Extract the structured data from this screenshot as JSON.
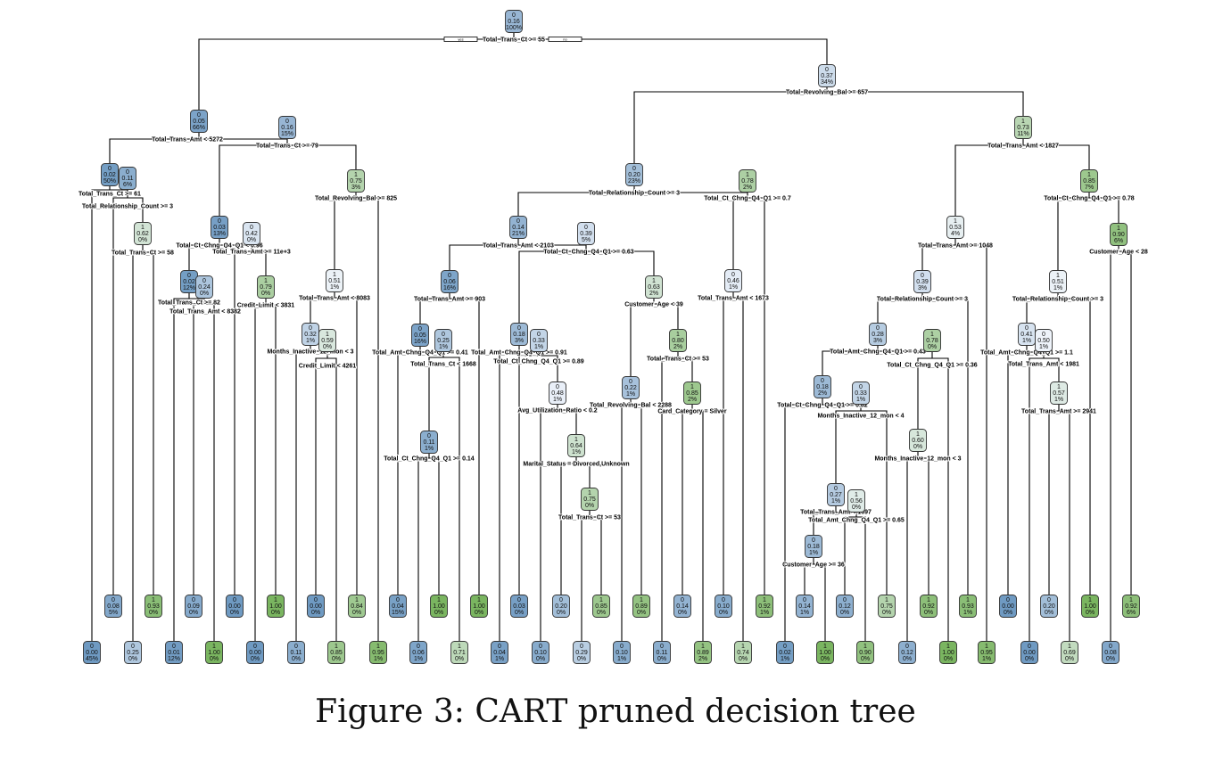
{
  "caption": "Figure 3: CART pruned decision tree",
  "palette": {
    "low": "#6f9ac2",
    "mid": "#eef3fa",
    "high": "#7ab560",
    "lowRange": [
      0,
      0.5
    ],
    "highRange": [
      0.5,
      1
    ]
  },
  "root_labels": {
    "yes": "yes",
    "no": "no"
  },
  "nodes": [
    {
      "id": 1,
      "cls": "0",
      "p": "0.16",
      "pct": "100%",
      "split": "Total_Trans_Ct >= 55"
    },
    {
      "id": 2,
      "cls": "0",
      "p": "0.05",
      "pct": "66%",
      "split": "Total_Trans_Amt < 5272"
    },
    {
      "id": 3,
      "cls": "0",
      "p": "0.37",
      "pct": "34%",
      "split": "Total_Revolving_Bal >= 657"
    },
    {
      "id": 4,
      "cls": "0",
      "p": "0.02",
      "pct": "50%",
      "split": "Total_Trans_Ct >= 61"
    },
    {
      "id": 5,
      "cls": "0",
      "p": "0.16",
      "pct": "15%",
      "split": "Total_Trans_Ct >= 79"
    },
    {
      "id": 6,
      "cls": "0",
      "p": "0.20",
      "pct": "23%",
      "split": "Total_Relationship_Count >= 3"
    },
    {
      "id": 7,
      "cls": "1",
      "p": "0.73",
      "pct": "11%",
      "split": "Total_Trans_Amt < 1827"
    },
    {
      "id": 8,
      "cls": "0",
      "p": "0.00",
      "pct": "45%"
    },
    {
      "id": 9,
      "cls": "0",
      "p": "0.11",
      "pct": "6%",
      "split": "Total_Relationship_Count >= 3"
    },
    {
      "id": 18,
      "cls": "0",
      "p": "0.08",
      "pct": "5%"
    },
    {
      "id": 19,
      "cls": "1",
      "p": "0.62",
      "pct": "0%",
      "split": "Total_Trans_Ct >= 58"
    },
    {
      "id": 38,
      "cls": "0",
      "p": "0.25",
      "pct": "0%"
    },
    {
      "id": 39,
      "cls": "1",
      "p": "0.93",
      "pct": "0%"
    },
    {
      "id": 10,
      "cls": "0",
      "p": "0.03",
      "pct": "13%",
      "split": "Total_Ct_Chng_Q4_Q1 < 0.96"
    },
    {
      "id": 20,
      "cls": "0",
      "p": "0.02",
      "pct": "12%",
      "split": "Total_Trans_Ct >= 82"
    },
    {
      "id": 40,
      "cls": "0",
      "p": "0.01",
      "pct": "12%"
    },
    {
      "id": 41,
      "cls": "0",
      "p": "0.09",
      "pct": "0%"
    },
    {
      "id": 21,
      "cls": "0",
      "p": "0.24",
      "pct": "0%",
      "split": "Total_Trans_Amt < 8382"
    },
    {
      "id": 42,
      "cls": "1",
      "p": "1.00",
      "pct": "0%"
    },
    {
      "id": 43,
      "cls": "0",
      "p": "0.00",
      "pct": "0%"
    },
    {
      "id": 11,
      "cls": "0",
      "p": "0.42",
      "pct": "0%",
      "split": "Total_Trans_Amt >= 11e+3"
    },
    {
      "id": 22,
      "cls": "0",
      "p": "0.00",
      "pct": "0%"
    },
    {
      "id": 23,
      "cls": "1",
      "p": "0.79",
      "pct": "0%",
      "split": "Credit_Limit < 3831"
    },
    {
      "id": 46,
      "cls": "0",
      "p": "0.00",
      "pct": "0%"
    },
    {
      "id": 47,
      "cls": "1",
      "p": "1.00",
      "pct": "0%"
    },
    {
      "id": 12,
      "cls": "1",
      "p": "0.75",
      "pct": "3%",
      "split": "Total_Revolving_Bal >= 825"
    },
    {
      "id": 24,
      "cls": "1",
      "p": "0.51",
      "pct": "1%",
      "split": "Total_Trans_Amt < 8083"
    },
    {
      "id": 48,
      "cls": "0",
      "p": "0.32",
      "pct": "1%",
      "split": "Months_Inactive_12_mon < 3"
    },
    {
      "id": 96,
      "cls": "0",
      "p": "0.11",
      "pct": "0%"
    },
    {
      "id": 97,
      "cls": "0",
      "p": "0.00",
      "pct": "0%"
    },
    {
      "id": 49,
      "cls": "1",
      "p": "0.59",
      "pct": "0%",
      "split": "Credit_Limit < 4261"
    },
    {
      "id": 98,
      "cls": "1",
      "p": "0.85",
      "pct": "0%"
    },
    {
      "id": 99,
      "cls": "1",
      "p": "0.84",
      "pct": "0%"
    },
    {
      "id": 25,
      "cls": "1",
      "p": "0.95",
      "pct": "1%"
    },
    {
      "id": 13,
      "cls": "0",
      "p": "0.14",
      "pct": "21%",
      "split": "Total_Trans_Amt < 2103"
    },
    {
      "id": 26,
      "cls": "0",
      "p": "0.06",
      "pct": "16%",
      "split": "Total_Trans_Amt >= 903"
    },
    {
      "id": 52,
      "cls": "0",
      "p": "0.05",
      "pct": "16%",
      "split": "Total_Amt_Chng_Q4_Q1 >= 0.41"
    },
    {
      "id": 104,
      "cls": "0",
      "p": "0.04",
      "pct": "15%"
    },
    {
      "id": 105,
      "cls": "0",
      "p": "0.11",
      "pct": "1%",
      "split": "Total_Ct_Chng_Q4_Q1 >= 0.14"
    },
    {
      "id": 210,
      "cls": "0",
      "p": "0.06",
      "pct": "1%"
    },
    {
      "id": 211,
      "cls": "1",
      "p": "1.00",
      "pct": "0%"
    },
    {
      "id": 53,
      "cls": "0",
      "p": "0.25",
      "pct": "1%",
      "split": "Total_Trans_Ct < 1668"
    },
    {
      "id": 106,
      "cls": "1",
      "p": "0.71",
      "pct": "0%"
    },
    {
      "id": 107,
      "cls": "1",
      "p": "1.00",
      "pct": "0%"
    },
    {
      "id": 27,
      "cls": "0",
      "p": "0.39",
      "pct": "5%",
      "split": "Total_Ct_Chng_Q4_Q1 >= 0.63"
    },
    {
      "id": 54,
      "cls": "0",
      "p": "0.18",
      "pct": "3%",
      "split": "Total_Amt_Chng_Q4_Q1 >= 0.91"
    },
    {
      "id": 108,
      "cls": "0",
      "p": "0.04",
      "pct": "1%"
    },
    {
      "id": 109,
      "cls": "0",
      "p": "0.33",
      "pct": "1%",
      "split": "Total_Ct_Chng_Q4_Q1 >= 0.89"
    },
    {
      "id": 218,
      "cls": "0",
      "p": "0.03",
      "pct": "0%"
    },
    {
      "id": 219,
      "cls": "0",
      "p": "0.48",
      "pct": "1%",
      "split": "Avg_Utilization_Ratio < 0.2"
    },
    {
      "id": 438,
      "cls": "0",
      "p": "0.10",
      "pct": "0%"
    },
    {
      "id": 439,
      "cls": "1",
      "p": "0.64",
      "pct": "1%",
      "split": "Marital_Status = Divorced,Unknown"
    },
    {
      "id": 878,
      "cls": "0",
      "p": "0.20",
      "pct": "0%"
    },
    {
      "id": 879,
      "cls": "1",
      "p": "0.75",
      "pct": "0%",
      "split": "Total_Trans_Ct >= 53"
    },
    {
      "id": 1758,
      "cls": "0",
      "p": "0.29",
      "pct": "0%"
    },
    {
      "id": 1759,
      "cls": "1",
      "p": "0.85",
      "pct": "0%"
    },
    {
      "id": 55,
      "cls": "1",
      "p": "0.63",
      "pct": "2%",
      "split": "Customer_Age < 39"
    },
    {
      "id": 110,
      "cls": "0",
      "p": "0.22",
      "pct": "1%",
      "split": "Total_Revolving_Bal < 2288"
    },
    {
      "id": 220,
      "cls": "0",
      "p": "0.10",
      "pct": "1%"
    },
    {
      "id": 221,
      "cls": "1",
      "p": "0.89",
      "pct": "0%"
    },
    {
      "id": 111,
      "cls": "1",
      "p": "0.80",
      "pct": "2%",
      "split": "Total_Trans_Ct >= 53"
    },
    {
      "id": 222,
      "cls": "0",
      "p": "0.11",
      "pct": "0%"
    },
    {
      "id": 223,
      "cls": "1",
      "p": "0.85",
      "pct": "2%",
      "split": "Card_Category = Silver"
    },
    {
      "id": 446,
      "cls": "0",
      "p": "0.14",
      "pct": "0%"
    },
    {
      "id": 447,
      "cls": "1",
      "p": "0.89",
      "pct": "2%"
    },
    {
      "id": 14,
      "cls": "1",
      "p": "0.78",
      "pct": "2%",
      "split": "Total_Ct_Chng_Q4_Q1 >= 0.7"
    },
    {
      "id": 28,
      "cls": "0",
      "p": "0.46",
      "pct": "1%",
      "split": "Total_Trans_Amt < 1673"
    },
    {
      "id": 56,
      "cls": "0",
      "p": "0.10",
      "pct": "0%"
    },
    {
      "id": 57,
      "cls": "1",
      "p": "0.74",
      "pct": "0%"
    },
    {
      "id": 29,
      "cls": "1",
      "p": "0.92",
      "pct": "1%"
    },
    {
      "id": 15,
      "cls": "1",
      "p": "0.53",
      "pct": "4%",
      "split": "Total_Trans_Amt >= 1048"
    },
    {
      "id": 30,
      "cls": "0",
      "p": "0.39",
      "pct": "3%",
      "split": "Total_Relationship_Count >= 3"
    },
    {
      "id": 60,
      "cls": "0",
      "p": "0.28",
      "pct": "3%",
      "split": "Total_Amt_Chng_Q4_Q1 >= 0.43"
    },
    {
      "id": 120,
      "cls": "0",
      "p": "0.18",
      "pct": "2%",
      "split": "Total_Ct_Chng_Q4_Q1 >= 0.82"
    },
    {
      "id": 240,
      "cls": "0",
      "p": "0.02",
      "pct": "1%"
    },
    {
      "id": 241,
      "cls": "0",
      "p": "0.33",
      "pct": "1%",
      "split": "Months_Inactive_12_mon < 4"
    },
    {
      "id": 482,
      "cls": "0",
      "p": "0.27",
      "pct": "1%",
      "split": "Total_Trans_Amt < 1697"
    },
    {
      "id": 964,
      "cls": "0",
      "p": "0.18",
      "pct": "1%",
      "split": "Customer_Age >= 36"
    },
    {
      "id": 1928,
      "cls": "0",
      "p": "0.14",
      "pct": "1%"
    },
    {
      "id": 1929,
      "cls": "1",
      "p": "1.00",
      "pct": "0%"
    },
    {
      "id": 965,
      "cls": "1",
      "p": "0.56",
      "pct": "0%",
      "split": "Total_Amt_Chng_Q4_Q1 >= 0.65"
    },
    {
      "id": 1930,
      "cls": "0",
      "p": "0.12",
      "pct": "0%"
    },
    {
      "id": 1931,
      "cls": "1",
      "p": "0.90",
      "pct": "0%"
    },
    {
      "id": 483,
      "cls": "1",
      "p": "0.75",
      "pct": "0%"
    },
    {
      "id": 121,
      "cls": "1",
      "p": "0.78",
      "pct": "0%",
      "split": "Total_Ct_Chng_Q4_Q1 >= 0.36"
    },
    {
      "id": 242,
      "cls": "1",
      "p": "0.60",
      "pct": "0%",
      "split": "Months_Inactive_12_mon < 3"
    },
    {
      "id": 484,
      "cls": "0",
      "p": "0.12",
      "pct": "0%"
    },
    {
      "id": 485,
      "cls": "1",
      "p": "0.92",
      "pct": "0%"
    },
    {
      "id": 243,
      "cls": "1",
      "p": "1.00",
      "pct": "0%"
    },
    {
      "id": 61,
      "cls": "1",
      "p": "0.93",
      "pct": "1%"
    },
    {
      "id": 31,
      "cls": "1",
      "p": "0.95",
      "pct": "1%"
    },
    {
      "id": 16,
      "cls": "1",
      "p": "0.85",
      "pct": "7%",
      "split": "Total_Ct_Chng_Q4_Q1 >= 0.78"
    },
    {
      "id": 32,
      "cls": "1",
      "p": "0.51",
      "pct": "1%",
      "split": "Total_Relationship_Count >= 3"
    },
    {
      "id": 64,
      "cls": "0",
      "p": "0.41",
      "pct": "1%",
      "split": "Total_Amt_Chng_Q4_Q1 >= 1.1"
    },
    {
      "id": 128,
      "cls": "0",
      "p": "0.00",
      "pct": "0%"
    },
    {
      "id": 129,
      "cls": "0",
      "p": "0.50",
      "pct": "1%",
      "split": "Total_Trans_Amt < 1981"
    },
    {
      "id": 258,
      "cls": "0",
      "p": "0.00",
      "pct": "0%"
    },
    {
      "id": 259,
      "cls": "1",
      "p": "0.57",
      "pct": "1%",
      "split": "Total_Trans_Amt >= 2941"
    },
    {
      "id": 518,
      "cls": "0",
      "p": "0.20",
      "pct": "0%"
    },
    {
      "id": 519,
      "cls": "1",
      "p": "0.69",
      "pct": "0%"
    },
    {
      "id": 65,
      "cls": "1",
      "p": "1.00",
      "pct": "0%"
    },
    {
      "id": 33,
      "cls": "1",
      "p": "0.90",
      "pct": "6%",
      "split": "Customer_Age < 28"
    },
    {
      "id": 66,
      "cls": "0",
      "p": "0.08",
      "pct": "0%"
    },
    {
      "id": 67,
      "cls": "1",
      "p": "0.92",
      "pct": "6%"
    }
  ],
  "edges": [
    [
      1,
      2
    ],
    [
      1,
      3
    ],
    [
      2,
      4
    ],
    [
      2,
      5
    ],
    [
      4,
      8
    ],
    [
      4,
      9
    ],
    [
      9,
      18
    ],
    [
      9,
      19
    ],
    [
      19,
      38
    ],
    [
      19,
      39
    ],
    [
      5,
      10
    ],
    [
      5,
      12
    ],
    [
      10,
      20
    ],
    [
      10,
      11
    ],
    [
      20,
      40
    ],
    [
      20,
      21
    ],
    [
      21,
      41
    ],
    [
      21,
      42
    ],
    [
      11,
      43
    ],
    [
      11,
      23
    ],
    [
      23,
      46
    ],
    [
      23,
      47
    ],
    [
      12,
      24
    ],
    [
      12,
      25
    ],
    [
      24,
      48
    ],
    [
      24,
      99
    ],
    [
      48,
      96
    ],
    [
      48,
      49
    ],
    [
      49,
      97
    ],
    [
      49,
      98
    ],
    [
      3,
      6
    ],
    [
      3,
      7
    ],
    [
      6,
      13
    ],
    [
      6,
      14
    ],
    [
      13,
      26
    ],
    [
      13,
      27
    ],
    [
      26,
      52
    ],
    [
      26,
      107
    ],
    [
      52,
      104
    ],
    [
      52,
      53
    ],
    [
      53,
      105
    ],
    [
      53,
      106
    ],
    [
      105,
      210
    ],
    [
      105,
      211
    ],
    [
      27,
      54
    ],
    [
      27,
      55
    ],
    [
      54,
      108
    ],
    [
      54,
      109
    ],
    [
      109,
      218
    ],
    [
      109,
      219
    ],
    [
      219,
      438
    ],
    [
      219,
      439
    ],
    [
      439,
      878
    ],
    [
      439,
      879
    ],
    [
      879,
      1758
    ],
    [
      879,
      1759
    ],
    [
      55,
      110
    ],
    [
      55,
      111
    ],
    [
      110,
      220
    ],
    [
      110,
      221
    ],
    [
      111,
      222
    ],
    [
      111,
      223
    ],
    [
      223,
      446
    ],
    [
      223,
      447
    ],
    [
      14,
      28
    ],
    [
      14,
      29
    ],
    [
      28,
      56
    ],
    [
      28,
      57
    ],
    [
      7,
      15
    ],
    [
      7,
      16
    ],
    [
      15,
      30
    ],
    [
      15,
      31
    ],
    [
      30,
      60
    ],
    [
      30,
      61
    ],
    [
      60,
      120
    ],
    [
      60,
      121
    ],
    [
      120,
      240
    ],
    [
      120,
      241
    ],
    [
      241,
      482
    ],
    [
      241,
      483
    ],
    [
      482,
      964
    ],
    [
      482,
      965
    ],
    [
      964,
      1928
    ],
    [
      964,
      1929
    ],
    [
      965,
      1930
    ],
    [
      965,
      1931
    ],
    [
      121,
      242
    ],
    [
      121,
      243
    ],
    [
      242,
      484
    ],
    [
      242,
      485
    ],
    [
      16,
      32
    ],
    [
      16,
      33
    ],
    [
      32,
      64
    ],
    [
      32,
      65
    ],
    [
      64,
      128
    ],
    [
      64,
      129
    ],
    [
      129,
      258
    ],
    [
      129,
      259
    ],
    [
      259,
      518
    ],
    [
      259,
      519
    ],
    [
      33,
      66
    ],
    [
      33,
      67
    ]
  ]
}
